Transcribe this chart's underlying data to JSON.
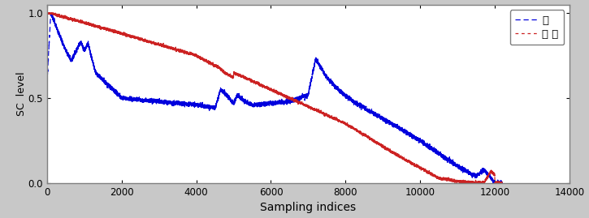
{
  "xlabel": "Sampling indices",
  "ylabel": "SC  level",
  "xlim": [
    0,
    14000
  ],
  "ylim": [
    0,
    1.05
  ],
  "xticks": [
    0,
    2000,
    4000,
    6000,
    8000,
    10000,
    12000,
    14000
  ],
  "yticks": [
    0,
    0.5,
    1
  ],
  "legend": [
    "코",
    "손 끝"
  ],
  "blue_color": "#0000dd",
  "red_color": "#cc2222",
  "fig_bg": "#c8c8c8",
  "ax_bg": "#ffffff",
  "n_points": 12200
}
